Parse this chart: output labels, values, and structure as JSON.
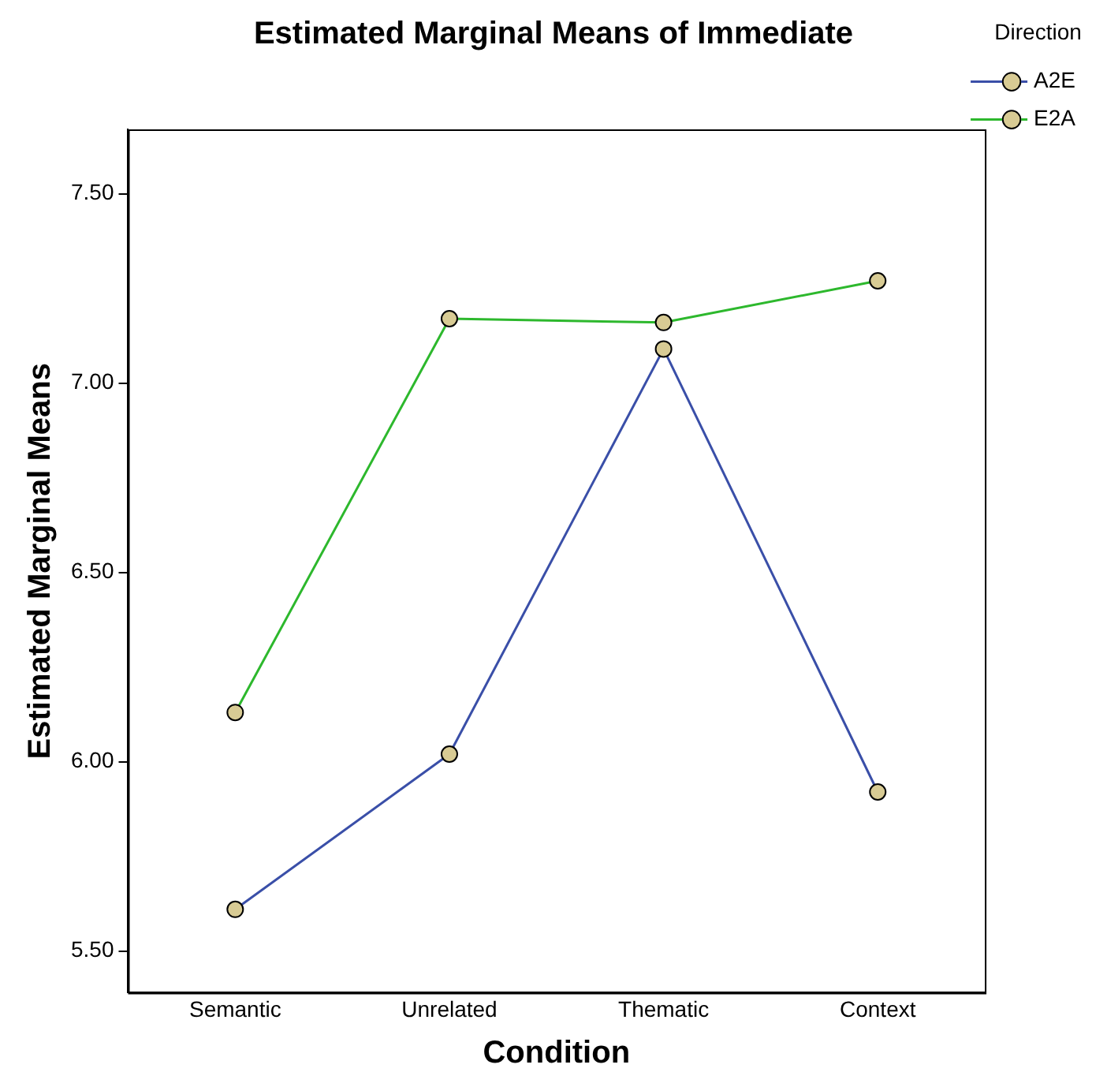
{
  "chart_data": {
    "type": "line",
    "title": "Estimated Marginal Means of Immediate",
    "xlabel": "Condition",
    "ylabel": "Estimated Marginal Means",
    "legend_title": "Direction",
    "legend": "top right",
    "marker": "circle",
    "line_style": "solid",
    "grid": false,
    "categories": [
      "Semantic",
      "Unrelated",
      "Thematic",
      "Context"
    ],
    "series": [
      {
        "name": "A2E",
        "color": "#3a4fa8",
        "values": [
          5.61,
          6.02,
          7.09,
          5.92
        ]
      },
      {
        "name": "E2A",
        "color": "#2db82d",
        "values": [
          6.13,
          7.17,
          7.16,
          7.27
        ]
      }
    ],
    "ylim": [
      5.39,
      7.67
    ],
    "yticks": [
      {
        "value": 5.5,
        "label": "5.50"
      },
      {
        "value": 6,
        "label": "6.00"
      },
      {
        "value": 6.5,
        "label": "6.50"
      },
      {
        "value": 7,
        "label": "7.00"
      },
      {
        "value": 7.5,
        "label": "7.50"
      }
    ]
  }
}
